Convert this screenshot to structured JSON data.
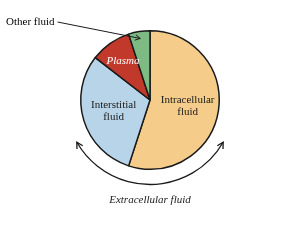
{
  "chart_data": {
    "type": "pie",
    "categories": [
      "Intracellular\nfluid",
      "Interstitial\nfluid",
      "Plasma",
      "Other fluid"
    ],
    "values": [
      55,
      30.5,
      9.5,
      5
    ],
    "colors": [
      "#f5cc8a",
      "#b8d4e8",
      "#c0392b",
      "#7dba84"
    ],
    "annotations": [
      "Extracellular fluid"
    ]
  }
}
